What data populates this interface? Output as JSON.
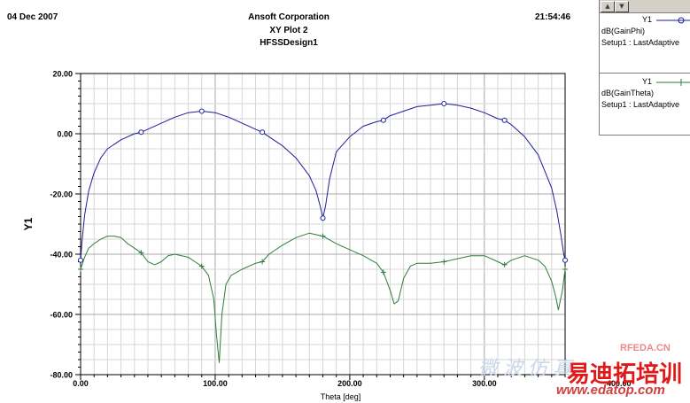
{
  "header": {
    "date": "04 Dec 2007",
    "company": "Ansoft Corporation",
    "plot_title": "XY Plot 2",
    "design": "HFSSDesign1",
    "time": "21:54:46"
  },
  "legend": {
    "entries": [
      {
        "label": "Y1",
        "line1": "dB(GainPhi)",
        "line2": "Setup1 : LastAdaptive",
        "color": "#1c1c9c",
        "marker": "circle"
      },
      {
        "label": "Y1",
        "line1": "dB(GainTheta)",
        "line2": "Setup1 : LastAdaptive",
        "color": "#2e7d3a",
        "marker": "plus"
      }
    ]
  },
  "watermarks": {
    "rfeda": "RFEDA.CN",
    "brand": "易迪拓培训",
    "faint": "微波仿真",
    "url": "www.edatop.com"
  },
  "chart_data": {
    "type": "line",
    "title": "XY Plot 2",
    "xlabel": "Theta [deg]",
    "ylabel": "Y1",
    "xlim": [
      0,
      360
    ],
    "ylim": [
      -80,
      20
    ],
    "grid": true,
    "legend_position": "top-right",
    "x_tick_labels": [
      "0.00",
      "100.00",
      "200.00",
      "300.00",
      "400.00"
    ],
    "y_tick_labels": [
      "20.00",
      "0.00",
      "-20.00",
      "-40.00",
      "-60.00",
      "-80.00"
    ],
    "series": [
      {
        "name": "dB(GainPhi)",
        "color": "#1c1c9c",
        "marker": "circle",
        "x": [
          0,
          1,
          3,
          6,
          10,
          15,
          20,
          30,
          40,
          45,
          50,
          60,
          70,
          80,
          90,
          100,
          110,
          120,
          130,
          135,
          140,
          150,
          160,
          170,
          175,
          178,
          180,
          182,
          185,
          190,
          200,
          210,
          220,
          225,
          230,
          240,
          250,
          260,
          270,
          280,
          290,
          300,
          310,
          315,
          320,
          330,
          340,
          350,
          354,
          357,
          359,
          360
        ],
        "y": [
          -42,
          -36,
          -27,
          -19,
          -13,
          -8,
          -5,
          -2,
          0,
          0.5,
          1.5,
          3.5,
          5.5,
          7,
          7.5,
          7,
          5.5,
          3.5,
          1.5,
          0.5,
          -1,
          -4,
          -8,
          -14,
          -19,
          -24,
          -28,
          -24,
          -15,
          -6,
          -1,
          2.5,
          4,
          4.5,
          6,
          7.5,
          9,
          9.5,
          10,
          9.5,
          8.5,
          7,
          5,
          4.5,
          3,
          -1,
          -7,
          -18,
          -26,
          -34,
          -40,
          -42
        ]
      },
      {
        "name": "dB(GainTheta)",
        "color": "#2e7d3a",
        "marker": "plus",
        "x": [
          0,
          3,
          6,
          10,
          15,
          20,
          25,
          30,
          35,
          40,
          45,
          50,
          55,
          60,
          65,
          70,
          75,
          80,
          85,
          90,
          95,
          99,
          101,
          103,
          105,
          108,
          112,
          120,
          130,
          135,
          140,
          150,
          160,
          170,
          180,
          190,
          200,
          210,
          220,
          225,
          230,
          233,
          236,
          240,
          245,
          250,
          260,
          270,
          280,
          290,
          300,
          310,
          315,
          320,
          330,
          340,
          345,
          350,
          353,
          355,
          358,
          360
        ],
        "y": [
          -45,
          -41,
          -38,
          -36.5,
          -35,
          -34,
          -34,
          -34.5,
          -36.5,
          -38,
          -39.5,
          -42.5,
          -43.5,
          -42.5,
          -40.5,
          -40,
          -40.5,
          -41,
          -42.5,
          -44,
          -47,
          -55,
          -67,
          -76,
          -60,
          -50,
          -47,
          -45,
          -43,
          -42.5,
          -40,
          -37,
          -34.5,
          -33,
          -34,
          -36.5,
          -38.5,
          -40.5,
          -43,
          -46,
          -52,
          -56.5,
          -55.5,
          -48,
          -44,
          -43,
          -43,
          -42.5,
          -41.5,
          -40.5,
          -40.5,
          -42.5,
          -43.5,
          -42,
          -40.5,
          -42,
          -44,
          -49,
          -54,
          -58.5,
          -52,
          -45
        ],
        "marker_x": [
          0,
          45,
          90,
          135,
          180,
          225,
          270,
          315,
          360
        ],
        "marker_y": [
          -45,
          -39.5,
          -44,
          -42.5,
          -34,
          -46,
          -42.5,
          -43.5,
          -45
        ]
      }
    ]
  }
}
